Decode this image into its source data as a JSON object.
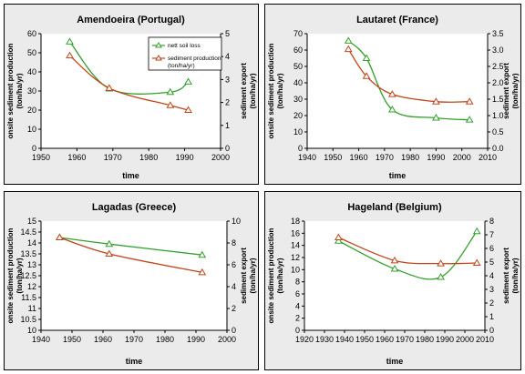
{
  "colors": {
    "panel_background": "#ebebeb",
    "plot_area": "#ffffff",
    "series_green": "#33a02c",
    "series_orange": "#c0451a"
  },
  "chart_data": [
    {
      "type": "line",
      "title": "Amendoeira (Portugal)",
      "xlabel": "time",
      "ylabel_left": "onsite sediment production (ton/ha/yr)",
      "ylabel_right": "sediment export (ton/ha/yr)",
      "xlim": [
        1950,
        2000
      ],
      "xticks": [
        "1950",
        "1960",
        "1970",
        "1980",
        "1990",
        "2000"
      ],
      "ylim_left": [
        0,
        60
      ],
      "yticks_left": [
        "0",
        "10",
        "20",
        "30",
        "40",
        "50",
        "60"
      ],
      "ylim_right": [
        0,
        5
      ],
      "yticks_right": [
        "0",
        "1",
        "2",
        "3",
        "4",
        "5"
      ],
      "legend": {
        "position": "top-right",
        "entries": [
          "nett soil loss",
          "sediment production (ton/ha/yr)"
        ]
      },
      "series": [
        {
          "name": "nett soil loss",
          "axis": "right",
          "color": "green",
          "marker": "triangle",
          "x": [
            1958,
            1969,
            1986,
            1991
          ],
          "y": [
            4.65,
            2.6,
            2.45,
            2.9
          ]
        },
        {
          "name": "sediment production (ton/ha/yr)",
          "axis": "left",
          "color": "orange",
          "marker": "triangle",
          "x": [
            1958,
            1969,
            1986,
            1991
          ],
          "y": [
            48.5,
            31.5,
            22.5,
            20
          ]
        }
      ]
    },
    {
      "type": "line",
      "title": "Lautaret (France)",
      "xlabel": "time",
      "ylabel_left": "onsite sediment production (ton/ha/yr)",
      "ylabel_right": "sediment export (ton/ha/yr)",
      "xlim": [
        1940,
        2010
      ],
      "xticks": [
        "1940",
        "1950",
        "1960",
        "1970",
        "1980",
        "1990",
        "2000",
        "2010"
      ],
      "ylim_left": [
        0,
        70
      ],
      "yticks_left": [
        "0",
        "10",
        "20",
        "30",
        "40",
        "50",
        "60",
        "70"
      ],
      "ylim_right": [
        0,
        3.5
      ],
      "yticks_right": [
        "0.0",
        "0.5",
        "1.0",
        "1.5",
        "2.0",
        "2.5",
        "3.0",
        "3.5"
      ],
      "series": [
        {
          "name": "green",
          "axis": "right",
          "color": "green",
          "marker": "triangle",
          "x": [
            1956,
            1963,
            1973,
            1990,
            2003
          ],
          "y": [
            3.28,
            2.75,
            1.18,
            0.93,
            0.87
          ]
        },
        {
          "name": "orange",
          "axis": "left",
          "color": "orange",
          "marker": "triangle",
          "x": [
            1956,
            1963,
            1973,
            1990,
            2003
          ],
          "y": [
            60.5,
            44,
            33,
            28.5,
            28.5
          ]
        }
      ]
    },
    {
      "type": "line",
      "title": "Lagadas (Greece)",
      "xlabel": "time",
      "ylabel_left": "onsite sediment production (ton/ha/yr)",
      "ylabel_right": "sediment export (ton/ha/yr)",
      "xlim": [
        1940,
        2000
      ],
      "xticks": [
        "1940",
        "1950",
        "1960",
        "1970",
        "1980",
        "1990",
        "2000"
      ],
      "ylim_left": [
        10,
        15
      ],
      "yticks_left": [
        "10",
        "10.5",
        "11",
        "11.5",
        "12",
        "12.5",
        "13",
        "13.5",
        "14",
        "14.5",
        "15"
      ],
      "ylim_right": [
        0,
        10
      ],
      "yticks_right": [
        "0",
        "2",
        "4",
        "6",
        "8",
        "10"
      ],
      "series": [
        {
          "name": "green",
          "axis": "right",
          "color": "green",
          "marker": "triangle",
          "x": [
            1946,
            1962,
            1992
          ],
          "y": [
            8.5,
            7.9,
            6.9
          ]
        },
        {
          "name": "orange",
          "axis": "left",
          "color": "orange",
          "marker": "triangle",
          "x": [
            1946,
            1962,
            1992
          ],
          "y": [
            14.25,
            13.5,
            12.65
          ]
        }
      ]
    },
    {
      "type": "line",
      "title": "Hageland (Belgium)",
      "xlabel": "time",
      "ylabel_left": "onsite sediment production (ton/ha/yr)",
      "ylabel_right": "sediment export (ton/ha/yr)",
      "xlim": [
        1920,
        2010
      ],
      "xticks": [
        "1920",
        "1930",
        "1940",
        "1950",
        "1960",
        "1970",
        "1980",
        "1990",
        "2000",
        "2010"
      ],
      "ylim_left": [
        0,
        18
      ],
      "yticks_left": [
        "0",
        "2",
        "4",
        "6",
        "8",
        "10",
        "12",
        "14",
        "16",
        "18"
      ],
      "ylim_right": [
        0,
        8
      ],
      "yticks_right": [
        "0",
        "1",
        "2",
        "3",
        "4",
        "5",
        "6",
        "7",
        "8"
      ],
      "series": [
        {
          "name": "green",
          "axis": "right",
          "color": "green",
          "marker": "triangle",
          "x": [
            1937,
            1965,
            1988,
            2006
          ],
          "y": [
            6.55,
            4.5,
            3.9,
            7.25
          ]
        },
        {
          "name": "orange",
          "axis": "left",
          "color": "orange",
          "marker": "triangle",
          "x": [
            1937,
            1965,
            1988,
            2006
          ],
          "y": [
            15.3,
            11.5,
            11,
            11.1
          ]
        }
      ]
    }
  ]
}
